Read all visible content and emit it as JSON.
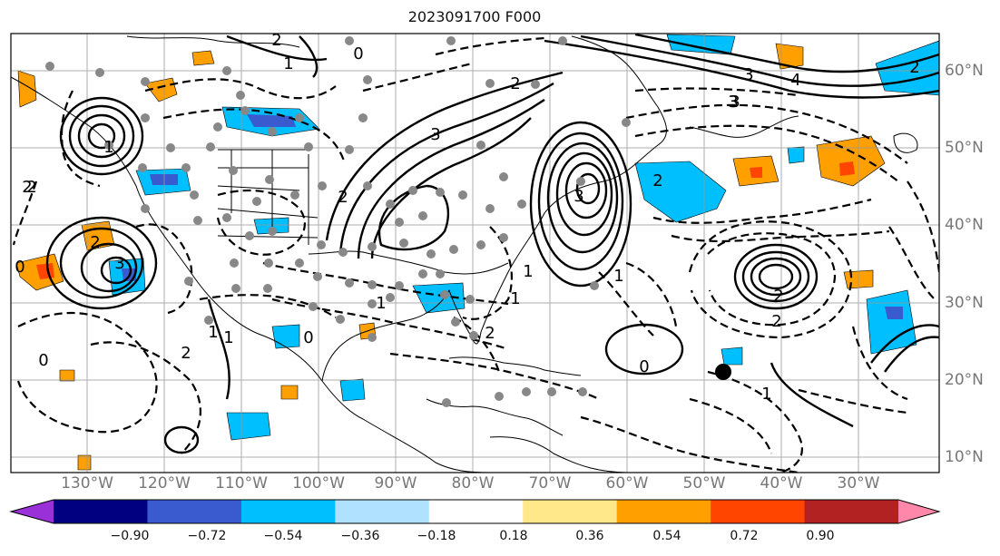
{
  "title": "2023091700 F000",
  "longitude_labels": [
    "130°W",
    "120°W",
    "110°W",
    "100°W",
    "90°W",
    "80°W",
    "70°W",
    "60°W",
    "50°W",
    "40°W",
    "30°W"
  ],
  "latitude_labels": [
    "60°N",
    "50°N",
    "40°N",
    "30°N",
    "20°N",
    "10°N"
  ],
  "colorbar": {
    "ticks": [
      "−0.90",
      "−0.72",
      "−0.54",
      "−0.36",
      "−0.18",
      "0.18",
      "0.36",
      "0.54",
      "0.72",
      "0.90"
    ],
    "colors": [
      "#9a30d8",
      "#000080",
      "#3a5bd0",
      "#00bfff",
      "#b0e2ff",
      "#ffffff",
      "#ffe88a",
      "#ffa000",
      "#ff4500",
      "#b22222",
      "#ff88aa"
    ]
  },
  "contour_labels": [
    "2",
    "1",
    "0",
    "3",
    "2",
    "3",
    "1",
    "3",
    "2",
    "4",
    "3",
    "2",
    "3",
    "2",
    "1",
    "0",
    "1",
    "2",
    "2",
    "1",
    "0",
    "2",
    "2",
    "1",
    "0",
    "1",
    "2",
    "3",
    "2",
    "1",
    "2",
    "0",
    "1"
  ],
  "marker_colors": {
    "station": "#888888",
    "storm": "#000000",
    "coast": "#000000",
    "grid": "#999999"
  }
}
